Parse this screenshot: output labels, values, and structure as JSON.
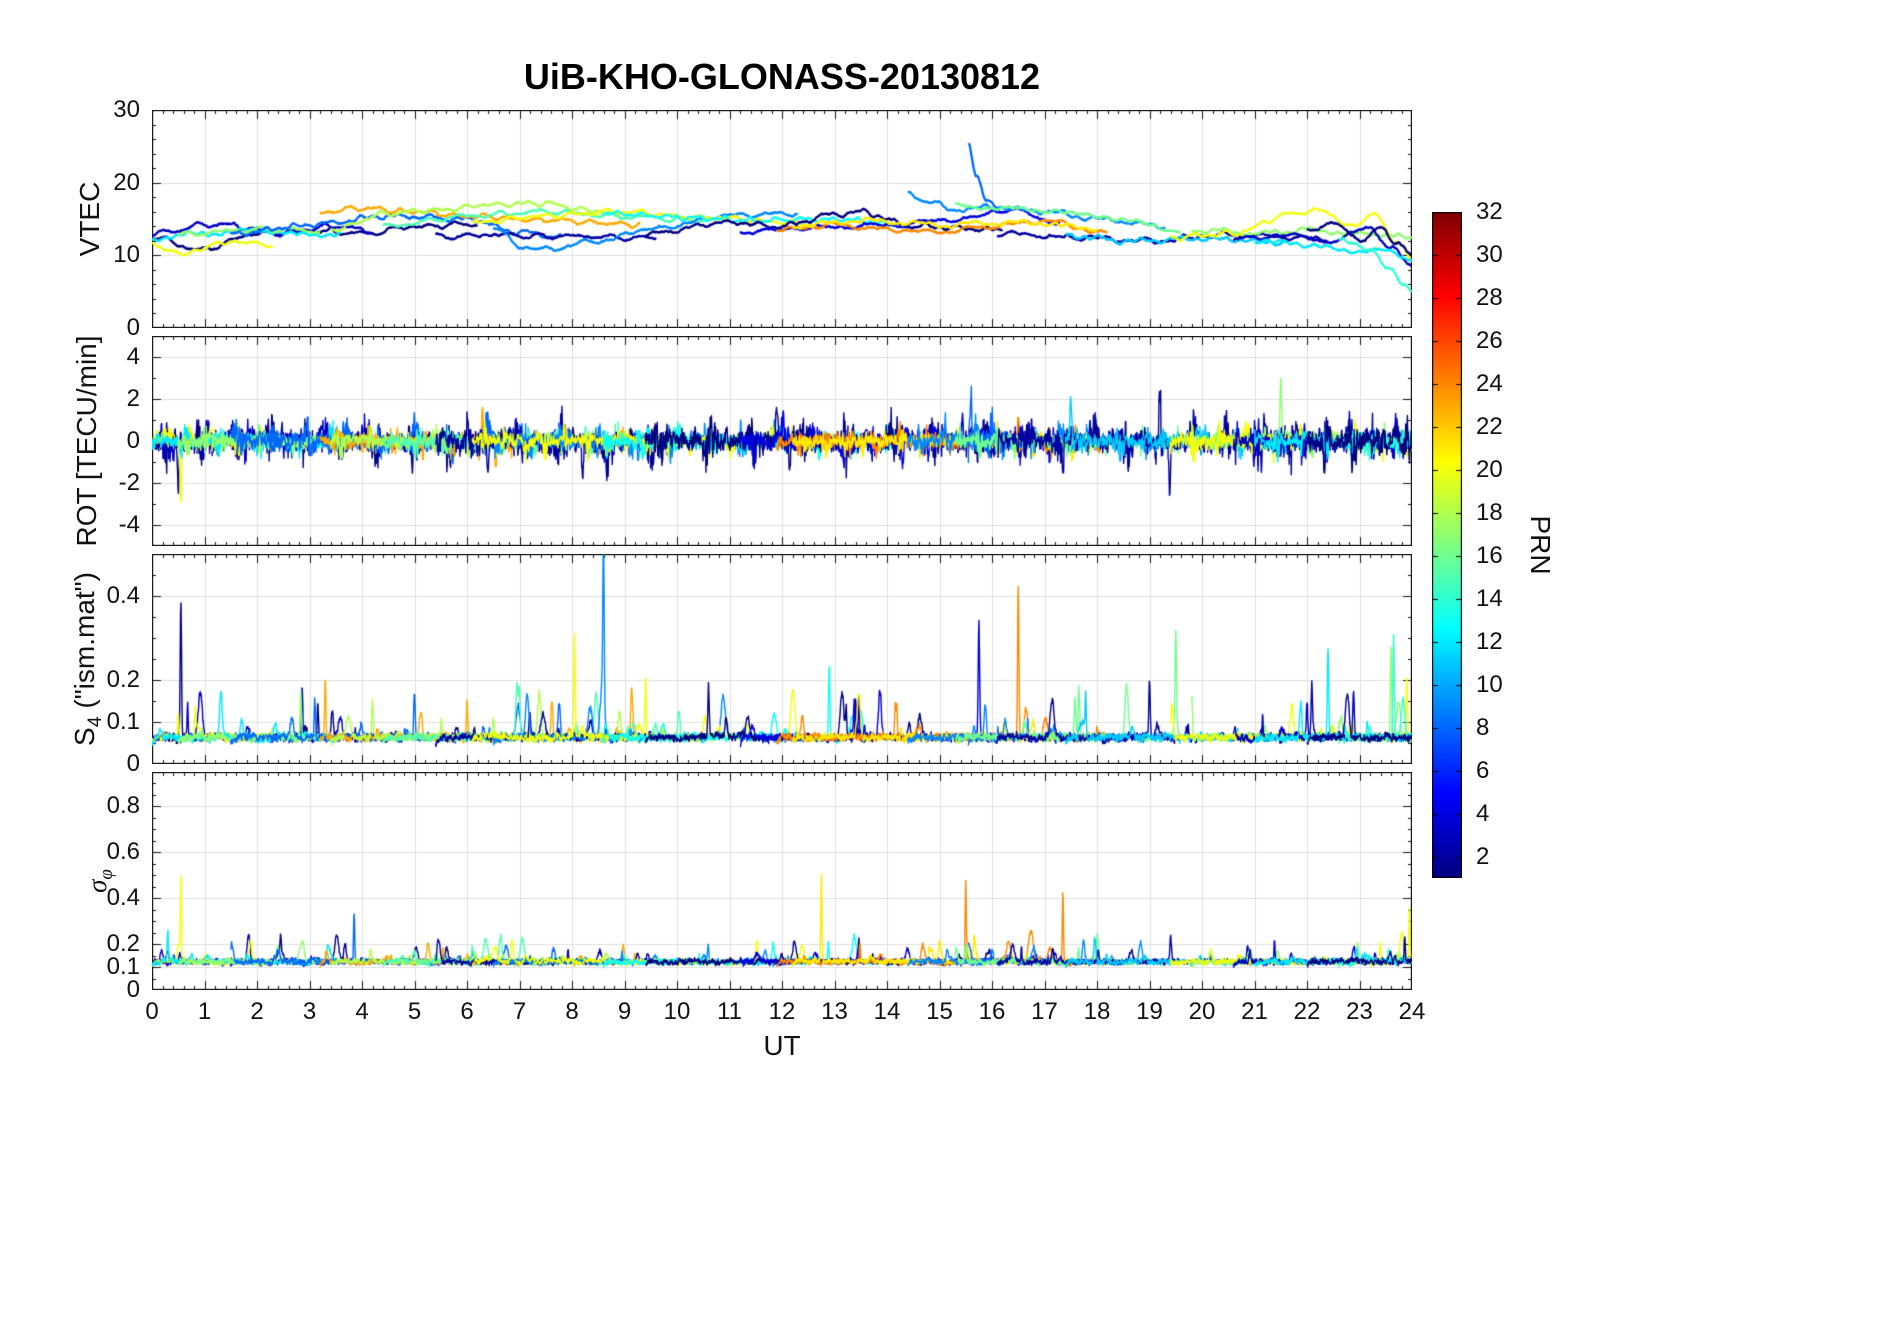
{
  "title": "UiB-KHO-GLONASS-20130812",
  "chart_data": {
    "type": "line",
    "title": "UiB-KHO-GLONASS-20130812",
    "xlabel": "UT",
    "x_range": [
      0,
      24
    ],
    "x_ticks": [
      0,
      1,
      2,
      3,
      4,
      5,
      6,
      7,
      8,
      9,
      10,
      11,
      12,
      13,
      14,
      15,
      16,
      17,
      18,
      19,
      20,
      21,
      22,
      23,
      24
    ],
    "x_minor_step": 0.2,
    "grid": true,
    "colorbar": {
      "label": "PRN",
      "range": [
        1,
        32
      ],
      "ticks": [
        2,
        4,
        6,
        8,
        10,
        12,
        14,
        16,
        18,
        20,
        22,
        24,
        26,
        28,
        30,
        32
      ],
      "colormap": "jet"
    },
    "panels": [
      {
        "key": "vtec",
        "ylabel_pre": "VTEC",
        "ylabel_sub": "",
        "ylabel_post": "",
        "ylim": [
          0,
          30
        ],
        "yticks": [
          0,
          10,
          20,
          30
        ],
        "minor_y": 2
      },
      {
        "key": "rot",
        "ylabel_pre": "ROT [TECU/min]",
        "ylabel_sub": "",
        "ylabel_post": "",
        "ylim": [
          -5,
          5
        ],
        "yticks": [
          -4,
          -2,
          0,
          2,
          4
        ],
        "minor_y": 1
      },
      {
        "key": "s4",
        "ylabel_pre": "S",
        "ylabel_sub": "4",
        "ylabel_post": " (\"ism.mat\")",
        "ylim": [
          0,
          0.5
        ],
        "yticks": [
          0,
          0.1,
          0.2,
          0.4
        ],
        "minor_y": 0.05
      },
      {
        "key": "sigma_phi",
        "ylabel_pre": "σ",
        "ylabel_sub": "φ",
        "ylabel_post": "",
        "ylim": [
          0,
          0.95
        ],
        "yticks": [
          0,
          0.1,
          0.2,
          0.4,
          0.6,
          0.8
        ],
        "minor_y": 0.05
      }
    ],
    "series": [
      {
        "prn": 1,
        "t": [
          0,
          6.2
        ],
        "v": [
          [
            0,
            12.5
          ],
          [
            0.9,
            10.8
          ],
          [
            2,
            13
          ],
          [
            3,
            13.4
          ],
          [
            4,
            13
          ],
          [
            5,
            14
          ],
          [
            6.2,
            14.3
          ]
        ],
        "ra": 0.45,
        "rs": [
          [
            0.5,
            -2.4
          ]
        ],
        "s4": [
          [
            0.55,
            0.39
          ]
        ]
      },
      {
        "prn": 3,
        "t": [
          0,
          4.2
        ],
        "v": [
          [
            0,
            13
          ],
          [
            1.2,
            14.3
          ],
          [
            2.5,
            13
          ],
          [
            3.5,
            14
          ],
          [
            4.2,
            13.4
          ]
        ],
        "ra": 0.4
      },
      {
        "prn": 20,
        "t": [
          0,
          2.3
        ],
        "v": [
          [
            0,
            11.2
          ],
          [
            0.7,
            10.3
          ],
          [
            1.5,
            12
          ],
          [
            2.3,
            11.2
          ]
        ],
        "ra": 0.35,
        "rs": [
          [
            0.55,
            -2.7
          ]
        ],
        "sg": [
          [
            0.55,
            0.5
          ]
        ],
        "s4": [
          [
            0.5,
            0.12
          ]
        ]
      },
      {
        "prn": 12,
        "t": [
          0,
          3.6
        ],
        "v": [
          [
            0,
            12.3
          ],
          [
            1,
            13
          ],
          [
            2,
            13.4
          ],
          [
            3,
            12.8
          ],
          [
            3.6,
            13
          ]
        ],
        "ra": 0.3,
        "sg": [
          [
            0.3,
            0.26
          ]
        ]
      },
      {
        "prn": 17,
        "t": [
          0.5,
          3.2
        ],
        "v": [
          [
            0.5,
            12.8
          ],
          [
            1.5,
            13.4
          ],
          [
            2.5,
            13.6
          ],
          [
            3.2,
            13.2
          ]
        ],
        "ra": 0.3
      },
      {
        "prn": 8,
        "t": [
          1.5,
          7.8
        ],
        "v": [
          [
            1.5,
            13
          ],
          [
            3,
            14.2
          ],
          [
            4.5,
            15.4
          ],
          [
            6,
            15
          ],
          [
            7,
            13.2
          ],
          [
            7.8,
            12.6
          ]
        ],
        "ra": 0.4,
        "s4": [
          [
            3.1,
            0.16
          ],
          [
            5,
            0.17
          ]
        ],
        "sg": [
          [
            3.85,
            0.34
          ]
        ]
      },
      {
        "prn": 23,
        "t": [
          3.2,
          9.3
        ],
        "v": [
          [
            3.2,
            15.8
          ],
          [
            4,
            16.5
          ],
          [
            5,
            16
          ],
          [
            6,
            15.4
          ],
          [
            7.5,
            14.8
          ],
          [
            9.3,
            14.2
          ]
        ],
        "ra": 0.3,
        "rs": [
          [
            6.3,
            1.4
          ],
          [
            6.55,
            -1.2
          ]
        ],
        "s4": [
          [
            3.3,
            0.2
          ],
          [
            6,
            0.15
          ]
        ]
      },
      {
        "prn": 18,
        "t": [
          3.4,
          9
        ],
        "v": [
          [
            3.4,
            13.5
          ],
          [
            4.5,
            15.8
          ],
          [
            5.5,
            16.3
          ],
          [
            6.5,
            17
          ],
          [
            7.5,
            17.2
          ],
          [
            8.3,
            16.2
          ],
          [
            9,
            15.5
          ]
        ],
        "ra": 0.3,
        "s4": [
          [
            4.2,
            0.15
          ]
        ]
      },
      {
        "prn": 15,
        "t": [
          4.4,
          10.6
        ],
        "v": [
          [
            4.4,
            14
          ],
          [
            6,
            15.4
          ],
          [
            7.5,
            16
          ],
          [
            9,
            15.3
          ],
          [
            10.6,
            14.8
          ]
        ],
        "ra": 0.3,
        "s4": [
          [
            7,
            0.16
          ]
        ]
      },
      {
        "prn": 2,
        "t": [
          5.4,
          9.6
        ],
        "v": [
          [
            5.4,
            12.6
          ],
          [
            6.5,
            12.8
          ],
          [
            8,
            12.6
          ],
          [
            9.6,
            12.4
          ]
        ],
        "ra": 0.5,
        "rs": [
          [
            6.4,
            -1.8
          ],
          [
            8.2,
            -1.9
          ]
        ]
      },
      {
        "prn": 9,
        "t": [
          6.5,
          12.3
        ],
        "v": [
          [
            6.5,
            13.8
          ],
          [
            7,
            11.2
          ],
          [
            7.5,
            10.8
          ],
          [
            8.5,
            12
          ],
          [
            9.5,
            13.6
          ],
          [
            11,
            15.5
          ],
          [
            12.3,
            15.8
          ]
        ],
        "ra": 0.35,
        "s4": [
          [
            8.6,
            0.45
          ]
        ]
      },
      {
        "prn": 20,
        "t": [
          6.1,
          12.6
        ],
        "v": [
          [
            6.1,
            14.5
          ],
          [
            7.5,
            15.5
          ],
          [
            9,
            16
          ],
          [
            10.5,
            15.2
          ],
          [
            12.6,
            14.3
          ]
        ],
        "ra": 0.3,
        "s4": [
          [
            8.05,
            0.31
          ],
          [
            9.4,
            0.2
          ]
        ]
      },
      {
        "prn": 13,
        "t": [
          8.6,
          14.2
        ],
        "v": [
          [
            8.6,
            15.8
          ],
          [
            10,
            15.3
          ],
          [
            11.5,
            14.8
          ],
          [
            13,
            15
          ],
          [
            14.2,
            14.3
          ]
        ],
        "ra": 0.3,
        "s4": [
          [
            12.9,
            0.23
          ]
        ]
      },
      {
        "prn": 1,
        "t": [
          9.4,
          16.2
        ],
        "v": [
          [
            9.4,
            13
          ],
          [
            11,
            14.5
          ],
          [
            12,
            14
          ],
          [
            13,
            15.6
          ],
          [
            13.5,
            16
          ],
          [
            14.5,
            14
          ],
          [
            16.2,
            13.5
          ]
        ],
        "ra": 0.5,
        "rs": [
          [
            11.9,
            1.7
          ],
          [
            12.15,
            -1.2
          ]
        ],
        "s4": [
          [
            10.6,
            0.18
          ],
          [
            13.4,
            0.15
          ]
        ]
      },
      {
        "prn": 4,
        "t": [
          11.2,
          17.3
        ],
        "v": [
          [
            11.2,
            13.2
          ],
          [
            12.5,
            13.8
          ],
          [
            14,
            14.2
          ],
          [
            15.5,
            15
          ],
          [
            16.3,
            16.3
          ],
          [
            17.3,
            14.5
          ]
        ],
        "ra": 0.4,
        "s4": [
          [
            15.75,
            0.3
          ]
        ]
      },
      {
        "prn": 24,
        "t": [
          11.9,
          18.2
        ],
        "v": [
          [
            11.9,
            13.5
          ],
          [
            13,
            14.2
          ],
          [
            14,
            13.6
          ],
          [
            15,
            13.2
          ],
          [
            16,
            14
          ],
          [
            17,
            14.8
          ],
          [
            18.2,
            13
          ]
        ],
        "ra": 0.28,
        "rs": [
          [
            16.5,
            1.2
          ]
        ],
        "s4": [
          [
            16.5,
            0.42
          ]
        ],
        "sg": [
          [
            15.5,
            0.47
          ],
          [
            17.35,
            0.42
          ]
        ]
      },
      {
        "prn": 21,
        "t": [
          12.2,
          18
        ],
        "v": [
          [
            12.2,
            14
          ],
          [
            13.5,
            14.8
          ],
          [
            15,
            14.2
          ],
          [
            16.5,
            14.5
          ],
          [
            18,
            13.8
          ]
        ],
        "ra": 0.28,
        "sg": [
          [
            12.75,
            0.5
          ]
        ]
      },
      {
        "prn": 9,
        "t": [
          14.4,
          19.3
        ],
        "v": [
          [
            14.4,
            18.7
          ],
          [
            14.8,
            17.4
          ],
          [
            15.3,
            16.2
          ],
          [
            16,
            16.6
          ],
          [
            17,
            16
          ],
          [
            18,
            15
          ],
          [
            19.3,
            14
          ]
        ],
        "ra": 0.35
      },
      {
        "prn": 8,
        "t": [
          15.55,
          16.15
        ],
        "v": [
          [
            15.55,
            25.5
          ],
          [
            15.7,
            21
          ],
          [
            15.9,
            17.5
          ],
          [
            16.15,
            16.3
          ]
        ],
        "ra": 0.5,
        "rs": [
          [
            15.6,
            2
          ]
        ]
      },
      {
        "prn": 16,
        "t": [
          15.3,
          19.6
        ],
        "v": [
          [
            15.3,
            16.8
          ],
          [
            16.2,
            16.5
          ],
          [
            17,
            16.2
          ],
          [
            18,
            15.4
          ],
          [
            19.6,
            13.5
          ]
        ],
        "ra": 0.3,
        "s4": [
          [
            19.5,
            0.27
          ]
        ]
      },
      {
        "prn": 2,
        "t": [
          16.1,
          22.4
        ],
        "v": [
          [
            16.1,
            13
          ],
          [
            17.5,
            12.5
          ],
          [
            19,
            12
          ],
          [
            20.5,
            12.8
          ],
          [
            22.4,
            12.3
          ]
        ],
        "ra": 0.5,
        "rs": [
          [
            19.2,
            2.3
          ],
          [
            19.38,
            -2.4
          ]
        ],
        "s4": [
          [
            19,
            0.2
          ]
        ]
      },
      {
        "prn": 11,
        "t": [
          17.4,
          21.6
        ],
        "v": [
          [
            17.4,
            12.8
          ],
          [
            18.5,
            12
          ],
          [
            20,
            12.3
          ],
          [
            21.6,
            11.8
          ]
        ],
        "ra": 0.3,
        "rs": [
          [
            17.5,
            2.1
          ]
        ]
      },
      {
        "prn": 17,
        "t": [
          19.8,
          24
        ],
        "v": [
          [
            19.8,
            13.5
          ],
          [
            21,
            13
          ],
          [
            22,
            13.5
          ],
          [
            23,
            13
          ],
          [
            24,
            12.5
          ]
        ],
        "ra": 0.3,
        "rs": [
          [
            21.5,
            2.8
          ]
        ],
        "s4": [
          [
            23.6,
            0.28
          ]
        ]
      },
      {
        "prn": 20,
        "t": [
          19.4,
          24
        ],
        "v": [
          [
            19.4,
            12.5
          ],
          [
            20.5,
            13
          ],
          [
            21.8,
            15.8
          ],
          [
            22.3,
            16.2
          ],
          [
            22.8,
            14
          ],
          [
            23.3,
            15.5
          ],
          [
            23.7,
            12
          ],
          [
            24,
            9.2
          ]
        ],
        "ra": 0.35,
        "s4": [
          [
            23.9,
            0.2
          ]
        ],
        "sg": [
          [
            23.95,
            0.36
          ]
        ]
      },
      {
        "prn": 3,
        "t": [
          20.6,
          24
        ],
        "v": [
          [
            20.6,
            12.2
          ],
          [
            21.5,
            12.8
          ],
          [
            22.5,
            12
          ],
          [
            23.2,
            13.8
          ],
          [
            23.6,
            11
          ],
          [
            24,
            8.5
          ]
        ],
        "ra": 0.45,
        "s4": [
          [
            22,
            0.15
          ]
        ]
      },
      {
        "prn": 12,
        "t": [
          21,
          24
        ],
        "v": [
          [
            21,
            12
          ],
          [
            22,
            11.5
          ],
          [
            22.8,
            10.5
          ],
          [
            23.3,
            10.8
          ],
          [
            24,
            9.5
          ]
        ],
        "ra": 0.3,
        "s4": [
          [
            22.4,
            0.27
          ]
        ]
      },
      {
        "prn": 14,
        "t": [
          22.6,
          24
        ],
        "v": [
          [
            22.6,
            12
          ],
          [
            23.2,
            11
          ],
          [
            23.6,
            8
          ],
          [
            23.85,
            5.5
          ],
          [
            24,
            5.2
          ]
        ],
        "ra": 0.3,
        "s4": [
          [
            23.65,
            0.3
          ]
        ]
      },
      {
        "prn": 1,
        "t": [
          22,
          24
        ],
        "v": [
          [
            22,
            13.5
          ],
          [
            22.5,
            14.5
          ],
          [
            23,
            12
          ],
          [
            23.4,
            14
          ],
          [
            23.7,
            11.5
          ],
          [
            24,
            10
          ]
        ],
        "ra": 0.5
      }
    ]
  }
}
